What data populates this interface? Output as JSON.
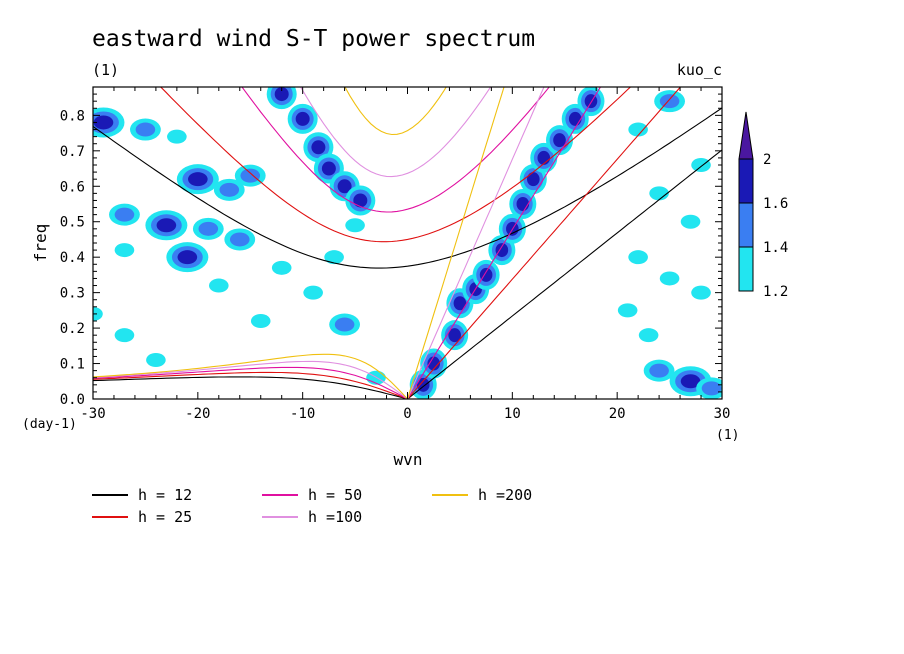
{
  "chart_data": {
    "type": "heatmap",
    "title": "eastward wind S-T power spectrum",
    "subtitle": "(1)",
    "right_label": "kuo_c",
    "xlabel": "wvn",
    "ylabel": "freq",
    "x_unit": "(1)",
    "y_unit": "(day-1)",
    "xlim": [
      -30,
      30
    ],
    "ylim": [
      0,
      0.88
    ],
    "x_ticks": [
      -30,
      -20,
      -10,
      0,
      10,
      20,
      30
    ],
    "y_ticks": [
      0.0,
      0.1,
      0.2,
      0.3,
      0.4,
      0.5,
      0.6,
      0.7,
      0.8
    ],
    "colorbar": {
      "levels": [
        1.2,
        1.4,
        1.6,
        2
      ],
      "labels": [
        "1.2",
        "1.4",
        "1.6",
        "2"
      ],
      "colors": [
        "#22e5f0",
        "#3a7ef2",
        "#1a19b5",
        "#4a17a0"
      ]
    },
    "dispersion_curves": [
      {
        "name": "h = 12",
        "h": 12,
        "color": "#000000"
      },
      {
        "name": "h = 25",
        "h": 25,
        "color": "#e01010"
      },
      {
        "name": "h = 50",
        "h": 50,
        "color": "#e010a0"
      },
      {
        "name": "h =100",
        "h": 100,
        "color": "#e090e0"
      },
      {
        "name": "h =200",
        "h": 200,
        "color": "#f0c010"
      }
    ],
    "kelvin_band": [
      {
        "x": 1.5,
        "y": 0.04,
        "level": 2
      },
      {
        "x": 2.5,
        "y": 0.1,
        "level": 2
      },
      {
        "x": 4.5,
        "y": 0.18,
        "level": 2
      },
      {
        "x": 5.0,
        "y": 0.27,
        "level": 2
      },
      {
        "x": 6.5,
        "y": 0.31,
        "level": 2
      },
      {
        "x": 7.5,
        "y": 0.35,
        "level": 2
      },
      {
        "x": 9.0,
        "y": 0.42,
        "level": 2
      },
      {
        "x": 10.0,
        "y": 0.48,
        "level": 2
      },
      {
        "x": 11.0,
        "y": 0.55,
        "level": 2
      },
      {
        "x": 12.0,
        "y": 0.62,
        "level": 2
      },
      {
        "x": 13.0,
        "y": 0.68,
        "level": 2
      },
      {
        "x": 14.5,
        "y": 0.73,
        "level": 2
      },
      {
        "x": 16.0,
        "y": 0.79,
        "level": 2
      },
      {
        "x": 17.5,
        "y": 0.84,
        "level": 2
      }
    ],
    "er_band": [
      {
        "x": -12.0,
        "y": 0.86,
        "level": 2
      },
      {
        "x": -10.0,
        "y": 0.79,
        "level": 2
      },
      {
        "x": -8.5,
        "y": 0.71,
        "level": 2
      },
      {
        "x": -7.5,
        "y": 0.65,
        "level": 2
      },
      {
        "x": -6.0,
        "y": 0.6,
        "level": 2
      },
      {
        "x": -4.5,
        "y": 0.56,
        "level": 2
      }
    ],
    "scatter_blobs": [
      {
        "x": -29,
        "y": 0.78,
        "level": 2
      },
      {
        "x": -25,
        "y": 0.76,
        "level": 1
      },
      {
        "x": -20,
        "y": 0.62,
        "level": 2
      },
      {
        "x": -17,
        "y": 0.59,
        "level": 1
      },
      {
        "x": -27,
        "y": 0.52,
        "level": 1
      },
      {
        "x": -23,
        "y": 0.49,
        "level": 2
      },
      {
        "x": -19,
        "y": 0.48,
        "level": 1
      },
      {
        "x": -16,
        "y": 0.45,
        "level": 1
      },
      {
        "x": -30,
        "y": 0.24,
        "level": 0
      },
      {
        "x": -27,
        "y": 0.18,
        "level": 0
      },
      {
        "x": -24,
        "y": 0.11,
        "level": 0
      },
      {
        "x": -21,
        "y": 0.4,
        "level": 2
      },
      {
        "x": -18,
        "y": 0.32,
        "level": 0
      },
      {
        "x": -14,
        "y": 0.22,
        "level": 0
      },
      {
        "x": -12,
        "y": 0.37,
        "level": 0
      },
      {
        "x": -9,
        "y": 0.3,
        "level": 0
      },
      {
        "x": -6,
        "y": 0.21,
        "level": 1
      },
      {
        "x": -22,
        "y": 0.74,
        "level": 0
      },
      {
        "x": -15,
        "y": 0.63,
        "level": 1
      },
      {
        "x": -5,
        "y": 0.49,
        "level": 0
      },
      {
        "x": 22,
        "y": 0.76,
        "level": 0
      },
      {
        "x": 25,
        "y": 0.84,
        "level": 1
      },
      {
        "x": 28,
        "y": 0.66,
        "level": 0
      },
      {
        "x": 24,
        "y": 0.58,
        "level": 0
      },
      {
        "x": 27,
        "y": 0.5,
        "level": 0
      },
      {
        "x": 22,
        "y": 0.4,
        "level": 0
      },
      {
        "x": 25,
        "y": 0.34,
        "level": 0
      },
      {
        "x": 28,
        "y": 0.3,
        "level": 0
      },
      {
        "x": 21,
        "y": 0.25,
        "level": 0
      },
      {
        "x": 24,
        "y": 0.08,
        "level": 1
      },
      {
        "x": 27,
        "y": 0.05,
        "level": 2
      },
      {
        "x": 29,
        "y": 0.03,
        "level": 1
      },
      {
        "x": 23,
        "y": 0.18,
        "level": 0
      },
      {
        "x": -3,
        "y": 0.06,
        "level": 0
      },
      {
        "x": -7,
        "y": 0.4,
        "level": 0
      },
      {
        "x": -27,
        "y": 0.42,
        "level": 0
      }
    ]
  },
  "x_tick_labels": [
    "-30",
    "-20",
    "-10",
    "0",
    "10",
    "20",
    "30"
  ],
  "y_tick_labels": [
    "0.0",
    "0.1",
    "0.2",
    "0.3",
    "0.4",
    "0.5",
    "0.6",
    "0.7",
    "0.8"
  ],
  "legend": [
    {
      "label": "h = 12",
      "color": "#000000"
    },
    {
      "label": "h = 25",
      "color": "#e01010"
    },
    {
      "label": "h = 50",
      "color": "#e010a0"
    },
    {
      "label": "h =100",
      "color": "#e090e0"
    },
    {
      "label": "h =200",
      "color": "#f0c010"
    }
  ]
}
